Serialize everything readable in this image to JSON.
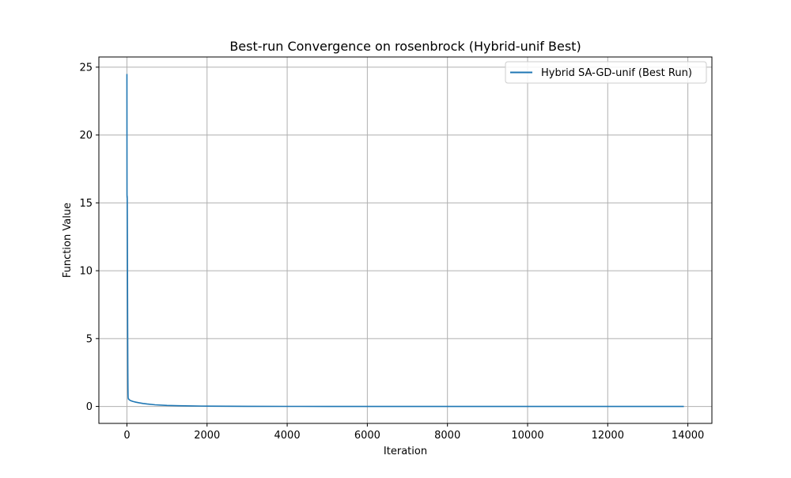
{
  "chart_data": {
    "type": "line",
    "title": "Best-run Convergence on rosenbrock (Hybrid-unif Best)",
    "xlabel": "Iteration",
    "ylabel": "Function Value",
    "xlim": [
      -700,
      14600
    ],
    "ylim": [
      -1.25,
      25.75
    ],
    "x_ticks": [
      0,
      2000,
      4000,
      6000,
      8000,
      10000,
      12000,
      14000
    ],
    "y_ticks": [
      0,
      5,
      10,
      15,
      20,
      25
    ],
    "grid": true,
    "legend_position": "upper right",
    "series": [
      {
        "name": "Hybrid SA-GD-unif (Best Run)",
        "color": "#1f77b4",
        "x": [
          0,
          2,
          4,
          6,
          8,
          10,
          12,
          14,
          16,
          18,
          20,
          22,
          24,
          26,
          28,
          30,
          32,
          34,
          36,
          38,
          40,
          45,
          50,
          60,
          80,
          100,
          150,
          200,
          300,
          400,
          500,
          700,
          1000,
          1300,
          1600,
          2000,
          2500,
          3000,
          4000,
          5000,
          7000,
          10000,
          13900
        ],
        "y": [
          24.5,
          15.6,
          15.4,
          15.5,
          15.3,
          14.0,
          12.0,
          10.0,
          8.0,
          6.0,
          4.5,
          3.0,
          2.0,
          1.3,
          0.9,
          0.7,
          0.62,
          0.58,
          0.55,
          0.55,
          0.56,
          0.55,
          0.52,
          0.48,
          0.45,
          0.42,
          0.37,
          0.33,
          0.27,
          0.22,
          0.18,
          0.12,
          0.07,
          0.05,
          0.035,
          0.02,
          0.012,
          0.008,
          0.004,
          0.002,
          0.001,
          0.0005,
          0.0002
        ]
      }
    ]
  }
}
